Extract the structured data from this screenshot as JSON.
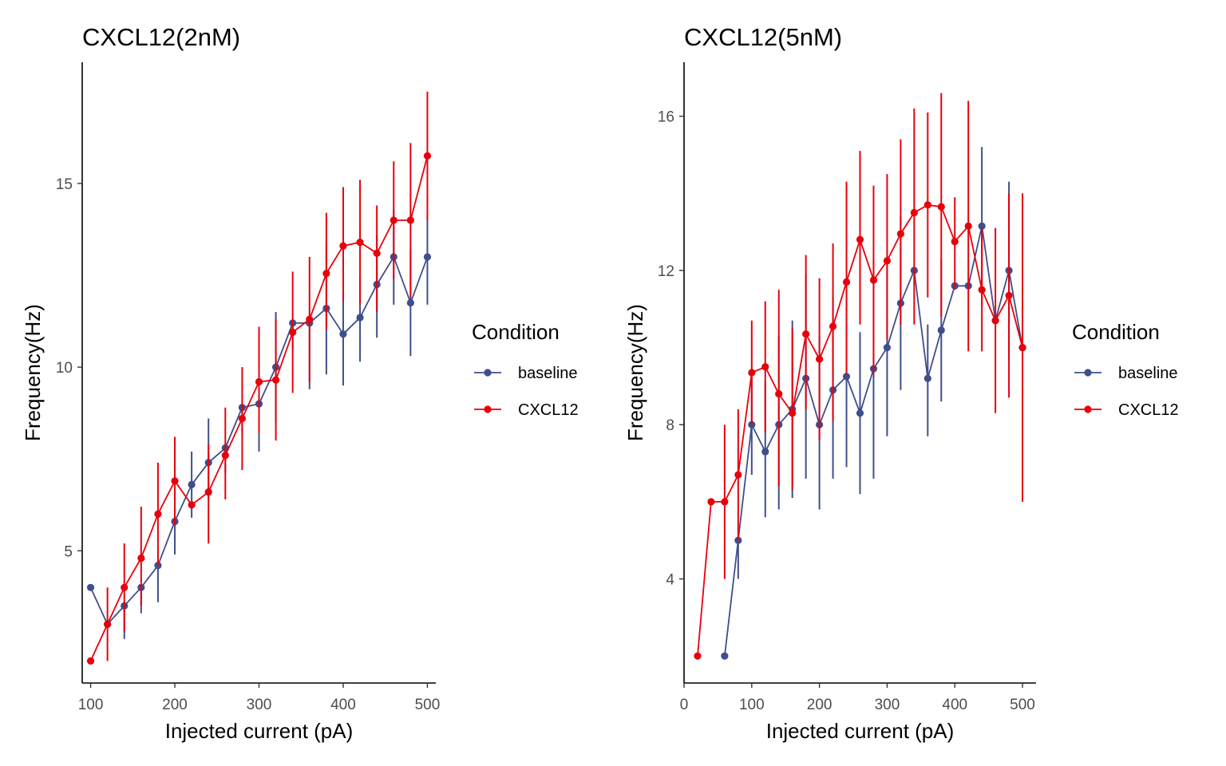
{
  "colors": {
    "baseline": "#3F4E8C",
    "CXCL12": "#E8000B",
    "axis": "#000000",
    "tick_text": "#4d4d4d"
  },
  "chart_data": [
    {
      "type": "line",
      "title": "CXCL12(2nM)",
      "xlabel": "Injected current (pA)",
      "ylabel": "Frequency(Hz)",
      "xlim": [
        90,
        510
      ],
      "ylim": [
        1.4,
        18.3
      ],
      "xticks": [
        100,
        200,
        300,
        400,
        500
      ],
      "yticks": [
        5,
        10,
        15
      ],
      "grid": false,
      "legend": {
        "title": "Condition",
        "position": "right"
      },
      "series": [
        {
          "name": "baseline",
          "color": "#3F4E8C",
          "x": [
            100,
            120,
            140,
            160,
            180,
            200,
            220,
            240,
            260,
            280,
            300,
            320,
            340,
            360,
            380,
            400,
            420,
            440,
            460,
            480,
            500
          ],
          "y": [
            4,
            3,
            3.5,
            4,
            4.6,
            5.8,
            6.8,
            7.4,
            7.8,
            8.9,
            9,
            10,
            11.2,
            11.2,
            11.6,
            10.9,
            11.35,
            12.25,
            13,
            11.75,
            13
          ],
          "err_low": [
            null,
            null,
            2.6,
            3.3,
            3.6,
            4.9,
            5.9,
            6.4,
            7.1,
            8.2,
            7.7,
            8.5,
            10.5,
            9.4,
            9.8,
            9.5,
            10.15,
            10.8,
            11.7,
            10.3,
            11.7
          ],
          "err_high": [
            null,
            null,
            null,
            null,
            null,
            null,
            7.7,
            8.6,
            null,
            null,
            null,
            11.5,
            null,
            null,
            13.4,
            11.9,
            12.5,
            13.6,
            14.3,
            13.2,
            14.1
          ]
        },
        {
          "name": "CXCL12",
          "color": "#E8000B",
          "x": [
            100,
            120,
            140,
            160,
            180,
            200,
            220,
            240,
            260,
            280,
            300,
            320,
            340,
            360,
            380,
            400,
            420,
            440,
            460,
            480,
            500
          ],
          "y": [
            2,
            3,
            4,
            4.8,
            6,
            6.9,
            6.25,
            6.6,
            7.6,
            8.6,
            9.6,
            9.65,
            10.95,
            11.3,
            12.55,
            13.3,
            13.4,
            13.1,
            14,
            14,
            15.75
          ],
          "err_low": [
            null,
            2,
            2.8,
            3.5,
            4.6,
            5.7,
            null,
            5.2,
            6.4,
            7.2,
            8.2,
            8,
            9.3,
            9.6,
            11,
            11.8,
            11.7,
            11.5,
            12.4,
            11.9,
            14
          ],
          "err_high": [
            null,
            4,
            5.2,
            6.2,
            7.4,
            8.1,
            null,
            7.9,
            8.9,
            10,
            11.1,
            11.3,
            12.6,
            13,
            14.2,
            14.9,
            15.1,
            14.4,
            15.6,
            16.1,
            17.5
          ]
        }
      ]
    },
    {
      "type": "line",
      "title": "CXCL12(5nM)",
      "xlabel": "Injected current (pA)",
      "ylabel": "Frequency(Hz)",
      "xlim": [
        0,
        520
      ],
      "ylim": [
        1.3,
        17.4
      ],
      "xticks": [
        0,
        100,
        200,
        300,
        400,
        500
      ],
      "yticks": [
        4,
        8,
        12,
        16
      ],
      "grid": false,
      "legend": {
        "title": "Condition",
        "position": "right"
      },
      "series": [
        {
          "name": "baseline",
          "color": "#3F4E8C",
          "x": [
            60,
            80,
            100,
            120,
            140,
            160,
            180,
            200,
            220,
            240,
            260,
            280,
            300,
            320,
            340,
            360,
            380,
            400,
            420,
            440,
            460,
            480,
            500
          ],
          "y": [
            2,
            5,
            8,
            7.3,
            8,
            8.4,
            9.2,
            8,
            8.9,
            9.25,
            8.3,
            9.45,
            10,
            11.15,
            12,
            9.2,
            10.45,
            11.6,
            11.6,
            13.15,
            10.7,
            12,
            10
          ],
          "err_low": [
            null,
            4,
            6.7,
            5.6,
            5.8,
            6.1,
            6.6,
            5.8,
            6.6,
            6.9,
            6.2,
            6.6,
            7.7,
            8.9,
            null,
            7.7,
            8.6,
            null,
            null,
            11.1,
            null,
            9.7,
            null
          ],
          "err_high": [
            null,
            null,
            9.4,
            9.1,
            10.3,
            10.7,
            11.9,
            10.3,
            11.3,
            11.5,
            10.4,
            12.3,
            12.4,
            13.4,
            null,
            10.6,
            12.3,
            null,
            null,
            15.2,
            null,
            14.3,
            null
          ]
        },
        {
          "name": "CXCL12",
          "color": "#E8000B",
          "x": [
            20,
            40,
            60,
            80,
            100,
            120,
            140,
            160,
            180,
            200,
            220,
            240,
            260,
            280,
            300,
            320,
            340,
            360,
            380,
            400,
            420,
            440,
            460,
            480,
            500
          ],
          "y": [
            2,
            6,
            6,
            6.7,
            9.35,
            9.5,
            8.8,
            8.3,
            10.35,
            9.7,
            10.55,
            11.7,
            12.8,
            11.75,
            12.25,
            12.95,
            13.5,
            13.7,
            13.65,
            12.75,
            13.15,
            11.5,
            10.7,
            11.35,
            10
          ],
          "err_low": [
            null,
            null,
            4,
            5,
            8,
            7.8,
            6.4,
            6.3,
            8.4,
            7.6,
            8.1,
            9.3,
            10.6,
            9.3,
            10.2,
            10.6,
            10.6,
            11.3,
            10.8,
            11.5,
            9.9,
            9.9,
            8.3,
            8.7,
            6
          ],
          "err_high": [
            null,
            null,
            8,
            8.4,
            10.7,
            11.2,
            11.5,
            10.5,
            12.4,
            11.8,
            12.7,
            14.3,
            15.1,
            14.2,
            14.5,
            15.4,
            16.2,
            16.1,
            16.6,
            13.9,
            16.4,
            13.1,
            13.1,
            14,
            14
          ]
        }
      ]
    }
  ]
}
